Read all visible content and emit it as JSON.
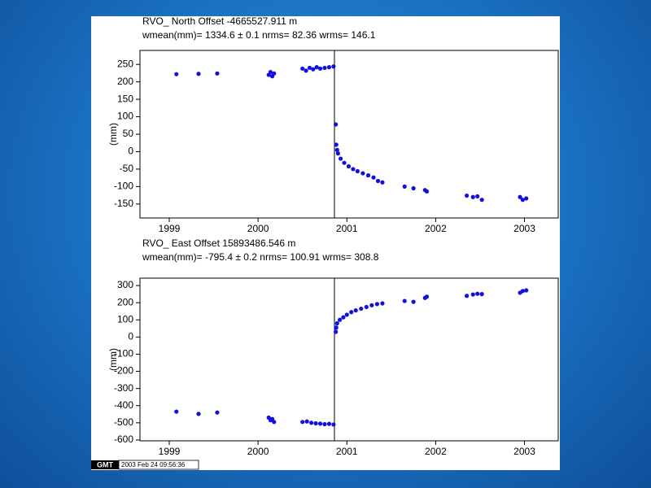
{
  "chart_data": [
    {
      "type": "scatter",
      "title": "RVO_  North Offset  -4665527.911 m",
      "subtitle": "wmean(mm)= 1334.6 ±  0.1  nrms= 82.36  wrms= 146.1",
      "y_label": "(mm)",
      "color": "#1010e0",
      "x": [
        1999.08,
        1999.33,
        1999.54,
        2000.12,
        2000.14,
        2000.16,
        2000.18,
        2000.5,
        2000.54,
        2000.58,
        2000.62,
        2000.66,
        2000.7,
        2000.75,
        2000.8,
        2000.85,
        2000.875,
        2000.88,
        2000.89,
        2000.9,
        2000.93,
        2000.97,
        2001.02,
        2001.07,
        2001.12,
        2001.18,
        2001.24,
        2001.3,
        2001.35,
        2001.4,
        2001.65,
        2001.75,
        2001.88,
        2001.9,
        2002.35,
        2002.42,
        2002.47,
        2002.52,
        2002.95,
        2002.98,
        2003.02
      ],
      "values": [
        222,
        223,
        224,
        220,
        228,
        216,
        224,
        238,
        232,
        240,
        236,
        242,
        238,
        240,
        242,
        244,
        78,
        20,
        5,
        -5,
        -20,
        -32,
        -42,
        -50,
        -56,
        -62,
        -68,
        -74,
        -84,
        -88,
        -100,
        -105,
        -110,
        -114,
        -126,
        -130,
        -128,
        -138,
        -130,
        -138,
        -134
      ],
      "xlim": [
        1998.67,
        2003.38
      ],
      "ylim": [
        -190,
        290
      ],
      "xticks": [
        1999,
        2000,
        2001,
        2002,
        2003
      ],
      "yticks": [
        -150,
        -100,
        -50,
        0,
        50,
        100,
        150,
        200,
        250
      ],
      "vline_x": 2000.86
    },
    {
      "type": "scatter",
      "title": "RVO_  East Offset  15893486.546 m",
      "subtitle": "wmean(mm)= -795.4 ±  0.2  nrms= 100.91  wrms= 308.8",
      "y_label": "(mm)",
      "color": "#1010e0",
      "x": [
        1999.08,
        1999.33,
        1999.54,
        2000.12,
        2000.14,
        2000.16,
        2000.18,
        2000.5,
        2000.55,
        2000.6,
        2000.65,
        2000.7,
        2000.75,
        2000.8,
        2000.85,
        2000.875,
        2000.88,
        2000.89,
        2000.92,
        2000.96,
        2001.0,
        2001.05,
        2001.1,
        2001.16,
        2001.22,
        2001.28,
        2001.34,
        2001.4,
        2001.65,
        2001.75,
        2001.88,
        2001.9,
        2002.35,
        2002.42,
        2002.47,
        2002.52,
        2002.95,
        2002.98,
        2003.02
      ],
      "values": [
        -435,
        -448,
        -440,
        -470,
        -485,
        -478,
        -495,
        -495,
        -492,
        -500,
        -503,
        -505,
        -508,
        -506,
        -510,
        30,
        55,
        80,
        100,
        115,
        130,
        145,
        155,
        165,
        175,
        185,
        192,
        196,
        210,
        205,
        228,
        235,
        240,
        248,
        252,
        250,
        258,
        268,
        272
      ],
      "xlim": [
        1998.67,
        2003.38
      ],
      "ylim": [
        -605,
        343
      ],
      "xticks": [
        1999,
        2000,
        2001,
        2002,
        2003
      ],
      "yticks": [
        -600,
        -500,
        -400,
        -300,
        -200,
        -100,
        0,
        100,
        200,
        300
      ],
      "vline_x": 2000.86
    }
  ],
  "stamp": {
    "logo": "GMT",
    "time": "2003 Feb 24 09:56:36"
  }
}
